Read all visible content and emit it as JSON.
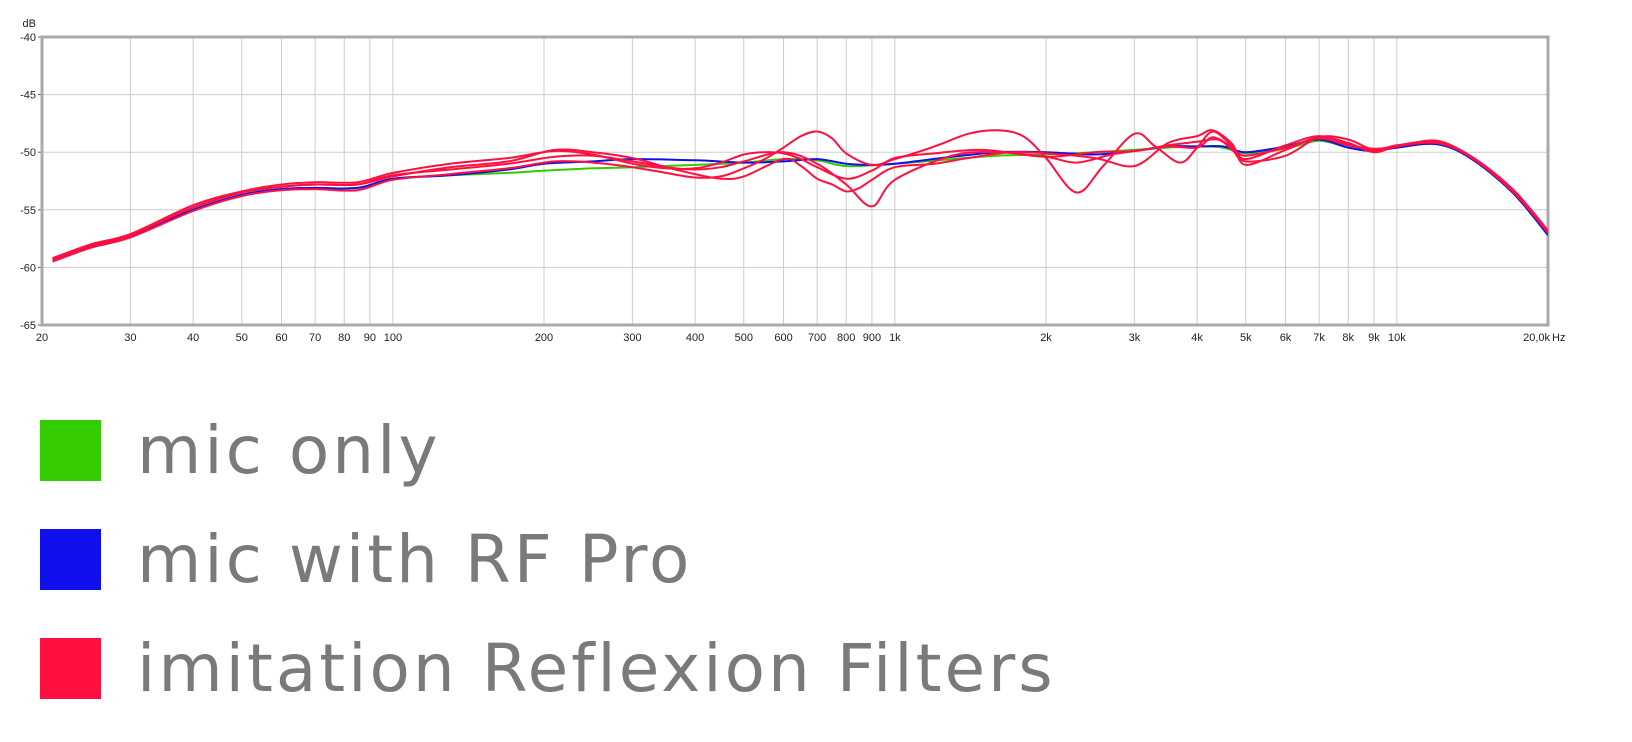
{
  "chart_data": {
    "type": "line",
    "title": "",
    "ylabel": "dB",
    "xunit": "Hz",
    "xscale": "log",
    "xlim": [
      20,
      20000
    ],
    "ylim": [
      -65,
      -40
    ],
    "grid": true,
    "legend_position": "bottom",
    "yticks": [
      "-40",
      "-45",
      "-50",
      "-55",
      "-60",
      "-65"
    ],
    "ytick_values": [
      -40,
      -45,
      -50,
      -55,
      -60,
      -65
    ],
    "xticks": [
      "20",
      "30",
      "40",
      "50",
      "60",
      "70",
      "80",
      "90",
      "100",
      "200",
      "300",
      "400",
      "500",
      "600",
      "700",
      "800",
      "900",
      "1k",
      "2k",
      "3k",
      "4k",
      "5k",
      "6k",
      "7k",
      "8k",
      "9k",
      "10k",
      "20,0k"
    ],
    "xtick_values": [
      20,
      30,
      40,
      50,
      60,
      70,
      80,
      90,
      100,
      200,
      300,
      400,
      500,
      600,
      700,
      800,
      900,
      1000,
      2000,
      3000,
      4000,
      5000,
      6000,
      7000,
      8000,
      9000,
      10000,
      20000
    ],
    "series": [
      {
        "name": "mic only",
        "color": "#33cc00",
        "x": [
          21,
          25,
          30,
          40,
          50,
          60,
          70,
          85,
          100,
          130,
          170,
          200,
          250,
          300,
          400,
          500,
          600,
          700,
          800,
          1000,
          1300,
          1600,
          2000,
          2500,
          3000,
          3500,
          4000,
          4500,
          5000,
          6000,
          7000,
          8000,
          9000,
          10000,
          12000,
          14000,
          17000,
          20000
        ],
        "y": [
          -59.4,
          -58.2,
          -57.3,
          -55.0,
          -53.7,
          -53.2,
          -53.1,
          -53.1,
          -52.3,
          -52.0,
          -51.8,
          -51.6,
          -51.4,
          -51.3,
          -51.1,
          -50.9,
          -50.6,
          -50.7,
          -51.2,
          -51.0,
          -50.6,
          -50.3,
          -50.2,
          -50.0,
          -49.8,
          -49.6,
          -49.5,
          -49.6,
          -50.1,
          -49.7,
          -49.0,
          -49.6,
          -49.8,
          -49.6,
          -49.3,
          -50.5,
          -53.5,
          -57.2
        ]
      },
      {
        "name": "mic with RF Pro",
        "color": "#1010ee",
        "x": [
          21,
          25,
          30,
          40,
          50,
          60,
          70,
          85,
          100,
          130,
          170,
          200,
          250,
          300,
          400,
          500,
          600,
          700,
          800,
          900,
          1000,
          1300,
          1600,
          2000,
          2500,
          3000,
          3500,
          4000,
          4500,
          5000,
          6000,
          7000,
          8000,
          9000,
          10000,
          12000,
          14000,
          17000,
          20000
        ],
        "y": [
          -59.4,
          -58.2,
          -57.3,
          -55.0,
          -53.7,
          -53.2,
          -53.1,
          -53.1,
          -52.3,
          -52.0,
          -51.5,
          -51.0,
          -50.8,
          -50.6,
          -50.7,
          -50.9,
          -50.8,
          -50.6,
          -51.0,
          -51.1,
          -51.0,
          -50.4,
          -50.0,
          -50.0,
          -50.2,
          -49.9,
          -49.5,
          -49.5,
          -49.5,
          -50.0,
          -49.5,
          -48.9,
          -49.6,
          -49.9,
          -49.6,
          -49.3,
          -50.5,
          -53.5,
          -57.2
        ]
      },
      {
        "name": "imitation Reflexion Filters",
        "color": "#ff1040",
        "x": [
          21,
          25,
          30,
          40,
          50,
          60,
          70,
          85,
          100,
          130,
          170,
          210,
          250,
          300,
          350,
          400,
          450,
          500,
          600,
          700,
          800,
          900,
          1000,
          1300,
          1600,
          2000,
          2300,
          2700,
          3000,
          3500,
          4000,
          4300,
          4700,
          5000,
          6000,
          7000,
          8000,
          9000,
          10000,
          12000,
          14000,
          17000,
          20000
        ],
        "y": [
          -59.3,
          -58.1,
          -57.2,
          -54.8,
          -53.5,
          -53.0,
          -52.8,
          -52.8,
          -52.0,
          -51.5,
          -51.0,
          -50.4,
          -50.3,
          -50.8,
          -51.3,
          -51.5,
          -51.3,
          -50.8,
          -50.0,
          -51.0,
          -52.8,
          -54.7,
          -52.4,
          -50.3,
          -50.0,
          -50.4,
          -50.9,
          -50.2,
          -49.9,
          -49.5,
          -49.6,
          -48.7,
          -49.6,
          -50.3,
          -49.6,
          -48.8,
          -49.4,
          -49.7,
          -49.5,
          -49.0,
          -50.4,
          -53.4,
          -57.0
        ]
      },
      {
        "name": "imitation Reflexion Filters",
        "color": "#ff1040",
        "x": [
          21,
          25,
          30,
          40,
          50,
          60,
          70,
          85,
          100,
          130,
          170,
          210,
          250,
          300,
          350,
          400,
          450,
          500,
          550,
          600,
          650,
          700,
          750,
          800,
          900,
          1000,
          1200,
          1400,
          1600,
          1800,
          2000,
          2300,
          2600,
          3000,
          3300,
          3700,
          4000,
          4300,
          4700,
          5000,
          6000,
          7000,
          8000,
          9000,
          10000,
          12000,
          14000,
          17000,
          20000
        ],
        "y": [
          -59.5,
          -58.3,
          -57.4,
          -55.1,
          -53.8,
          -53.3,
          -53.2,
          -53.3,
          -52.4,
          -51.9,
          -51.4,
          -50.8,
          -50.9,
          -51.3,
          -51.8,
          -52.2,
          -52.1,
          -51.4,
          -50.6,
          -49.6,
          -48.6,
          -48.2,
          -48.8,
          -50.1,
          -51.1,
          -50.6,
          -49.5,
          -48.4,
          -48.1,
          -48.6,
          -50.5,
          -53.5,
          -51.2,
          -48.4,
          -49.5,
          -50.9,
          -49.6,
          -48.2,
          -49.5,
          -50.6,
          -49.4,
          -48.6,
          -49.3,
          -49.9,
          -49.5,
          -49.2,
          -50.4,
          -53.3,
          -56.9
        ]
      },
      {
        "name": "imitation Reflexion Filters",
        "color": "#ff1040",
        "x": [
          21,
          25,
          30,
          40,
          50,
          60,
          70,
          85,
          100,
          130,
          170,
          210,
          250,
          300,
          350,
          400,
          450,
          500,
          600,
          650,
          700,
          750,
          800,
          850,
          900,
          1000,
          1200,
          1400,
          1700,
          2000,
          2500,
          3000,
          3500,
          4000,
          4300,
          4700,
          5000,
          6000,
          7000,
          8000,
          9000,
          10000,
          12000,
          14000,
          17000,
          20000
        ],
        "y": [
          -59.3,
          -58.1,
          -57.2,
          -54.8,
          -53.5,
          -53.0,
          -52.8,
          -52.8,
          -52.1,
          -51.3,
          -50.8,
          -49.8,
          -50.0,
          -50.5,
          -51.3,
          -51.9,
          -52.3,
          -52.1,
          -50.6,
          -51.2,
          -52.3,
          -52.8,
          -53.4,
          -53.1,
          -52.4,
          -51.3,
          -51.0,
          -50.5,
          -50.0,
          -50.1,
          -50.5,
          -51.2,
          -49.2,
          -48.6,
          -48.1,
          -49.3,
          -51.1,
          -49.8,
          -48.7,
          -49.2,
          -50.0,
          -49.5,
          -49.1,
          -50.3,
          -53.2,
          -56.8
        ]
      },
      {
        "name": "imitation Reflexion Filters",
        "color": "#ff1040",
        "x": [
          21,
          25,
          30,
          40,
          50,
          60,
          70,
          85,
          100,
          130,
          170,
          210,
          250,
          300,
          350,
          400,
          450,
          500,
          550,
          600,
          650,
          700,
          800,
          900,
          1000,
          1200,
          1500,
          2000,
          2500,
          3000,
          3500,
          4000,
          4400,
          4700,
          5000,
          6000,
          7000,
          8000,
          9000,
          10000,
          12000,
          14000,
          17000,
          20000
        ],
        "y": [
          -59.2,
          -58.0,
          -57.1,
          -54.6,
          -53.4,
          -52.8,
          -52.6,
          -52.6,
          -51.8,
          -51.0,
          -50.5,
          -49.9,
          -50.2,
          -51.0,
          -51.4,
          -51.4,
          -50.9,
          -50.2,
          -50.0,
          -50.1,
          -50.6,
          -51.3,
          -52.3,
          -51.6,
          -50.5,
          -50.1,
          -49.8,
          -50.4,
          -50.0,
          -49.9,
          -49.4,
          -49.1,
          -48.9,
          -49.8,
          -50.8,
          -50.3,
          -48.7,
          -48.9,
          -49.8,
          -49.4,
          -49.1,
          -50.4,
          -53.3,
          -56.9
        ]
      }
    ]
  },
  "legend": {
    "items": [
      {
        "label": "mic only",
        "color": "#33cc00"
      },
      {
        "label": "mic with RF Pro",
        "color": "#1010ee"
      },
      {
        "label": "imitation Reflexion Filters",
        "color": "#ff1040"
      }
    ]
  }
}
